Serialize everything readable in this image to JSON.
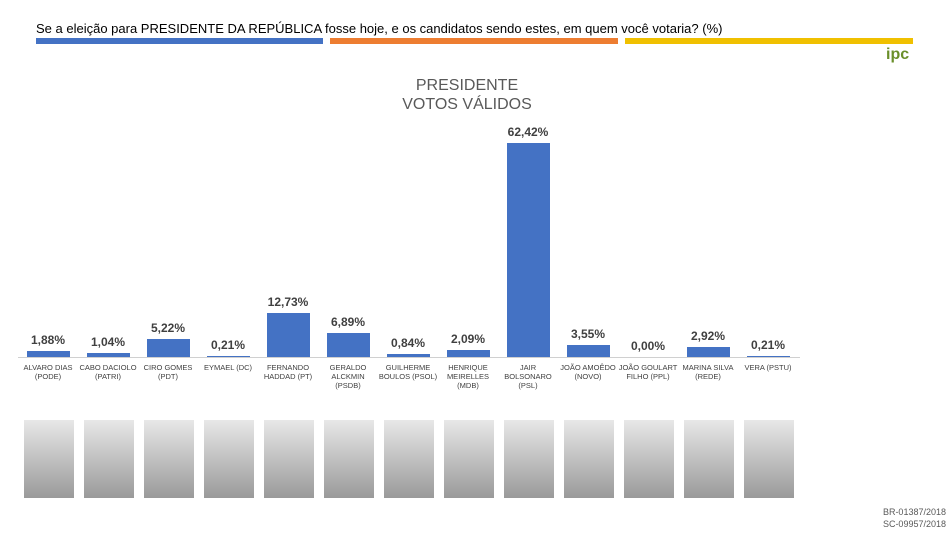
{
  "header": {
    "question": "Se a eleição para PRESIDENTE DA REPÚBLICA fosse hoje, e os candidatos sendo estes, em quem você votaria? (%)",
    "logo": "ipc"
  },
  "chart_data": {
    "type": "bar",
    "title": "PRESIDENTE",
    "subtitle": "VOTOS VÁLIDOS",
    "color": "#4472c4",
    "categories": [
      "ALVARO DIAS\n(PODE)",
      "CABO DACIOLO\n(PATRI)",
      "CIRO GOMES\n(PDT)",
      "EYMAEL (DC)",
      "FERNANDO\nHADDAD (PT)",
      "GERALDO\nALCKMIN\n(PSDB)",
      "GUILHERME\nBOULOS (PSOL)",
      "HENRIQUE\nMEIRELLES\n(MDB)",
      "JAIR\nBOLSONARO\n(PSL)",
      "JOÃO AMOÊDO\n(NOVO)",
      "JOÃO GOULART\nFILHO (PPL)",
      "MARINA SILVA\n(REDE)",
      "VERA (PSTU)"
    ],
    "values": [
      1.88,
      1.04,
      5.22,
      0.21,
      12.73,
      6.89,
      0.84,
      2.09,
      62.42,
      3.55,
      0.0,
      2.92,
      0.21
    ],
    "value_labels": [
      "1,88%",
      "1,04%",
      "5,22%",
      "0,21%",
      "12,73%",
      "6,89%",
      "0,84%",
      "2,09%",
      "62,42%",
      "3,55%",
      "0,00%",
      "2,92%",
      "0,21%"
    ]
  },
  "footer": {
    "codes": [
      "BR-01387/2018",
      "SC-09957/2018"
    ]
  }
}
